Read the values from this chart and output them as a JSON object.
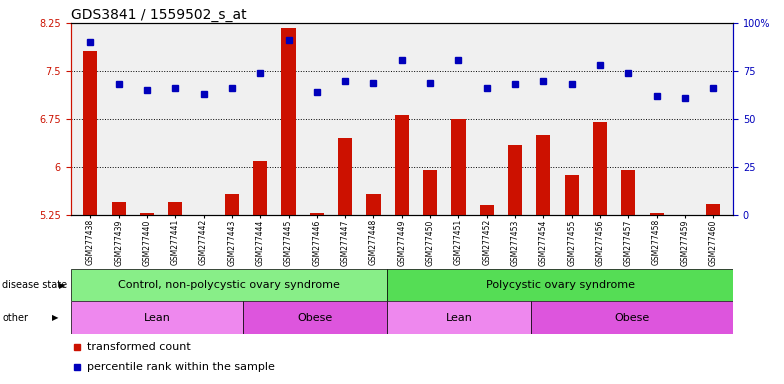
{
  "title": "GDS3841 / 1559502_s_at",
  "samples": [
    "GSM277438",
    "GSM277439",
    "GSM277440",
    "GSM277441",
    "GSM277442",
    "GSM277443",
    "GSM277444",
    "GSM277445",
    "GSM277446",
    "GSM277447",
    "GSM277448",
    "GSM277449",
    "GSM277450",
    "GSM277451",
    "GSM277452",
    "GSM277453",
    "GSM277454",
    "GSM277455",
    "GSM277456",
    "GSM277457",
    "GSM277458",
    "GSM277459",
    "GSM277460"
  ],
  "transformed_count": [
    7.82,
    5.45,
    5.28,
    5.45,
    5.22,
    5.58,
    6.1,
    8.18,
    5.28,
    6.45,
    5.58,
    6.82,
    5.95,
    6.75,
    5.4,
    6.35,
    6.5,
    5.88,
    6.7,
    5.95,
    5.28,
    5.22,
    5.42
  ],
  "percentile_rank": [
    90,
    68,
    65,
    66,
    63,
    66,
    74,
    91,
    64,
    70,
    69,
    81,
    69,
    81,
    66,
    68,
    70,
    68,
    78,
    74,
    62,
    61,
    66
  ],
  "ylim_left": [
    5.25,
    8.25
  ],
  "ylim_right": [
    0,
    100
  ],
  "yticks_left": [
    5.25,
    6.0,
    6.75,
    7.5,
    8.25
  ],
  "yticks_right": [
    0,
    25,
    50,
    75,
    100
  ],
  "ytick_labels_left": [
    "5.25",
    "6",
    "6.75",
    "7.5",
    "8.25"
  ],
  "ytick_labels_right": [
    "0",
    "25",
    "50",
    "75",
    "100%"
  ],
  "bar_color": "#cc1100",
  "dot_color": "#0000bb",
  "background_color": "#ffffff",
  "plot_bg_color": "#f0f0f0",
  "disease_state_groups": [
    {
      "label": "Control, non-polycystic ovary syndrome",
      "start": 0,
      "end": 11,
      "color": "#88ee88"
    },
    {
      "label": "Polycystic ovary syndrome",
      "start": 11,
      "end": 23,
      "color": "#55dd55"
    }
  ],
  "other_groups": [
    {
      "label": "Lean",
      "start": 0,
      "end": 6,
      "color": "#ee88ee"
    },
    {
      "label": "Obese",
      "start": 6,
      "end": 11,
      "color": "#dd55dd"
    },
    {
      "label": "Lean",
      "start": 11,
      "end": 16,
      "color": "#ee88ee"
    },
    {
      "label": "Obese",
      "start": 16,
      "end": 23,
      "color": "#dd55dd"
    }
  ],
  "title_fontsize": 10,
  "tick_fontsize": 7,
  "group_fontsize": 8,
  "legend_fontsize": 8
}
